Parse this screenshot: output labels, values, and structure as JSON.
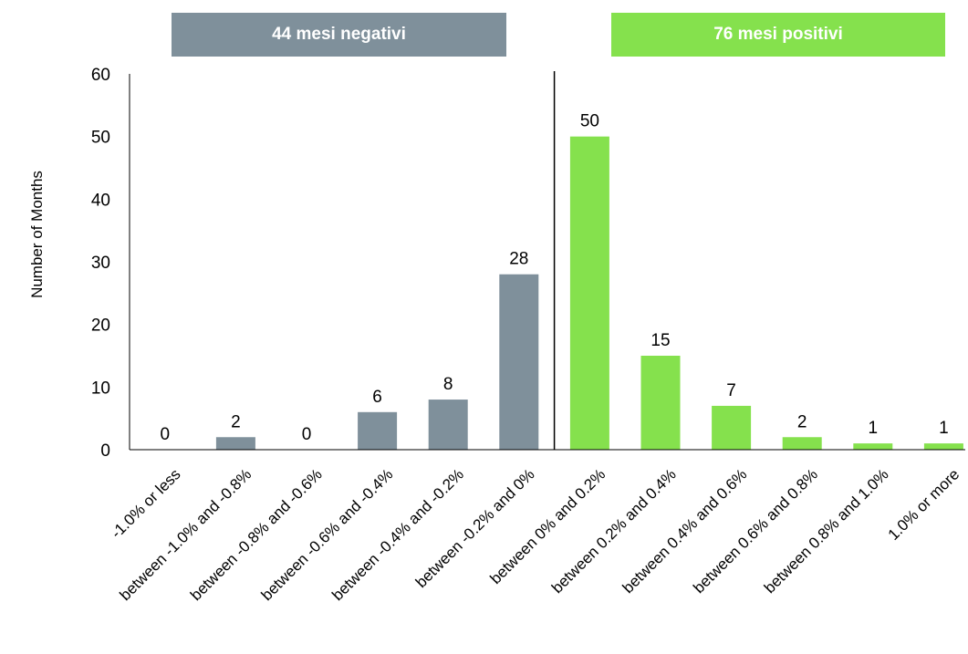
{
  "banners": {
    "negative": {
      "label": "44 mesi negativi",
      "color": "#7f909b"
    },
    "positive": {
      "label": "76 mesi positivi",
      "color": "#85e14d"
    }
  },
  "chart_data": {
    "type": "bar",
    "title": "",
    "xlabel": "",
    "ylabel": "Number of Months",
    "ylim": [
      0,
      60
    ],
    "yticks": [
      0,
      10,
      20,
      30,
      40,
      50,
      60
    ],
    "grid": false,
    "categories": [
      "-1.0% or less",
      "between -1.0% and -0.8%",
      "between -0.8% and -0.6%",
      "between -0.6% and -0.4%",
      "between -0.4% and -0.2%",
      "between -0.2% and 0%",
      "between 0% and 0.2%",
      "between 0.2% and 0.4%",
      "between 0.4% and 0.6%",
      "between 0.6% and 0.8%",
      "between 0.8% and 1.0%",
      "1.0% or more"
    ],
    "values": [
      0,
      2,
      0,
      6,
      8,
      28,
      50,
      15,
      7,
      2,
      1,
      1
    ],
    "colors": [
      "#7f909b",
      "#7f909b",
      "#7f909b",
      "#7f909b",
      "#7f909b",
      "#7f909b",
      "#85e14d",
      "#85e14d",
      "#85e14d",
      "#85e14d",
      "#85e14d",
      "#85e14d"
    ],
    "data_labels": true
  }
}
